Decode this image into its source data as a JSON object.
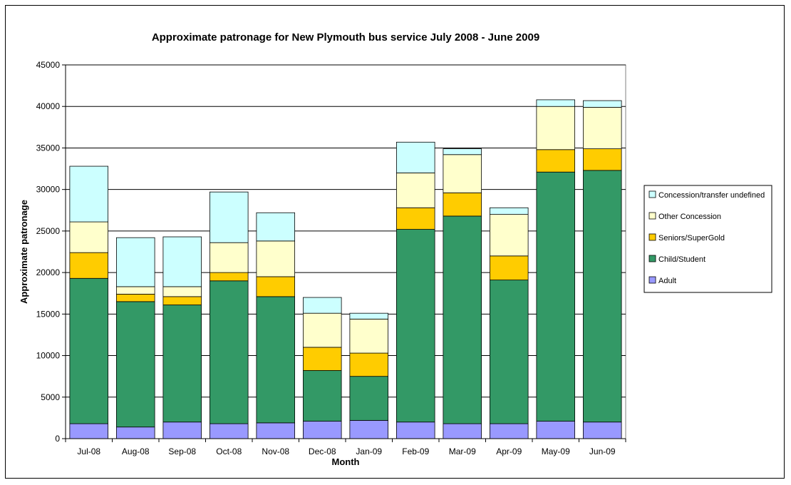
{
  "chart_data": {
    "type": "bar",
    "stacked": true,
    "title": "Approximate patronage for New Plymouth bus service July 2008 - June 2009",
    "xlabel": "Month",
    "ylabel": "Approximate patronage",
    "ylim": [
      0,
      45000
    ],
    "yticks": [
      0,
      5000,
      10000,
      15000,
      20000,
      25000,
      30000,
      35000,
      40000,
      45000
    ],
    "grid": true,
    "legend_position": "right",
    "categories": [
      "Jul-08",
      "Aug-08",
      "Sep-08",
      "Oct-08",
      "Nov-08",
      "Dec-08",
      "Jan-09",
      "Feb-09",
      "Mar-09",
      "Apr-09",
      "May-09",
      "Jun-09"
    ],
    "series": [
      {
        "name": "Adult",
        "color": "#9999ff",
        "values": [
          1800,
          1400,
          2000,
          1800,
          1900,
          2100,
          2200,
          2000,
          1800,
          1800,
          2100,
          2000
        ]
      },
      {
        "name": "Child/Student",
        "color": "#339966",
        "values": [
          17500,
          15100,
          14100,
          17200,
          15200,
          6100,
          5300,
          23200,
          25000,
          17300,
          30000,
          30300
        ]
      },
      {
        "name": "Seniors/SuperGold",
        "color": "#ffcc00",
        "values": [
          3100,
          900,
          1000,
          1000,
          2400,
          2800,
          2800,
          2600,
          2800,
          2900,
          2700,
          2600
        ]
      },
      {
        "name": "Other Concession",
        "color": "#ffffcc",
        "values": [
          3700,
          900,
          1200,
          3600,
          4300,
          4100,
          4100,
          4200,
          4600,
          5000,
          5200,
          5000
        ]
      },
      {
        "name": "Concession/transfer undefined",
        "color": "#ccffff",
        "values": [
          6700,
          5900,
          6000,
          6100,
          3400,
          1900,
          700,
          3700,
          700,
          800,
          800,
          800
        ]
      }
    ]
  }
}
